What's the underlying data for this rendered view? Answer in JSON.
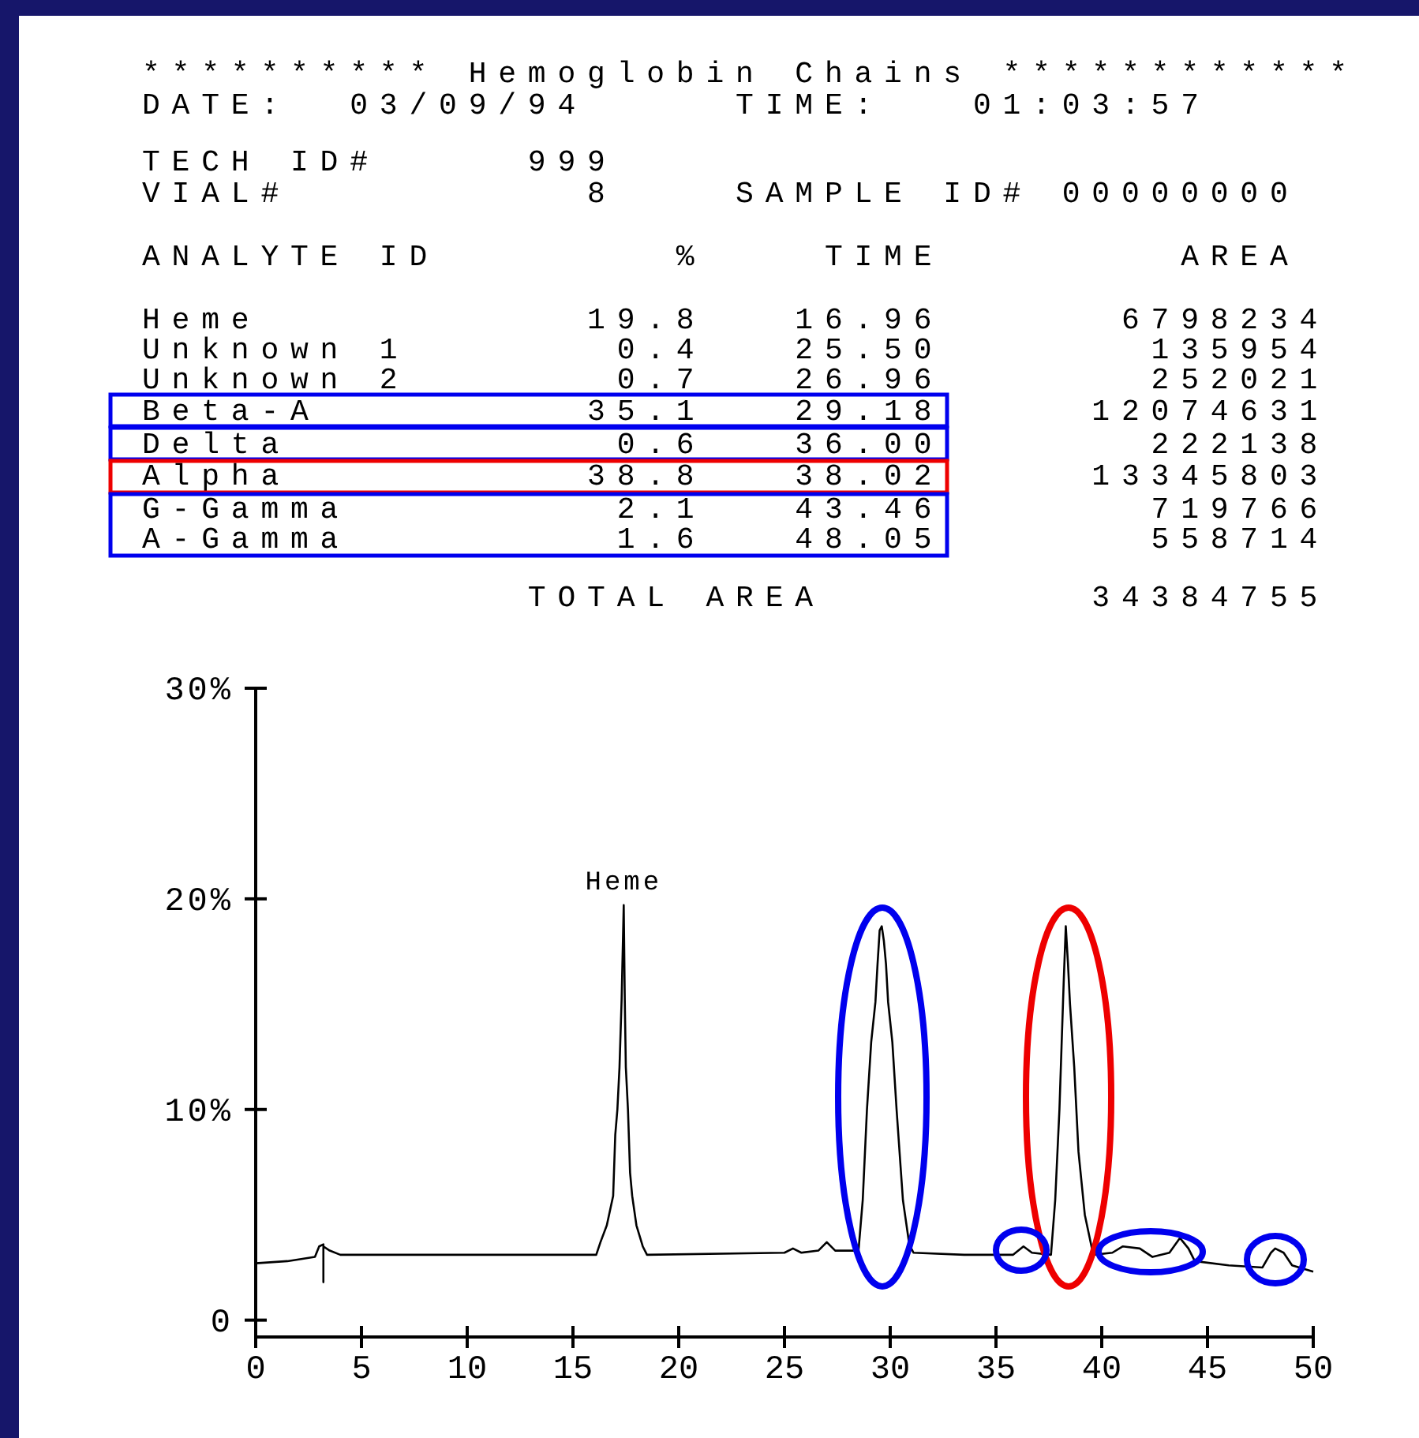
{
  "chart_data": {
    "type": "line",
    "title": "********** Hemoglobin Chains ************",
    "annotations": [
      "DATE:  03/09/94     TIME:   01:03:57",
      "TECH ID#     999",
      "VIAL#          8    SAMPLE ID# 00000000",
      "ANALYTE ID        %    TIME        AREA",
      "Heme           19.8   16.96      6798234",
      "Unknown 1       0.4   25.50       135954",
      "Unknown 2       0.7   26.96       252021",
      "Beta-A         35.1   29.18     12074631",
      "Delta           0.6   36.00       222138",
      "Alpha          38.8   38.02     13345803",
      "G-Gamma         2.1   43.46       719766",
      "A-Gamma         1.6   48.05       558714",
      "             TOTAL AREA         34384755",
      {
        "text": "Heme",
        "x": 17.4,
        "y": 19.7
      }
    ],
    "x": [
      0,
      1.5,
      2.8,
      3.0,
      3.2,
      3.2,
      3.2,
      3.5,
      4.0,
      10,
      16.1,
      16.3,
      16.6,
      16.9,
      17.0,
      17.1,
      17.2,
      17.3,
      17.4,
      17.45,
      17.5,
      17.6,
      17.7,
      17.8,
      18.0,
      18.3,
      18.5,
      25.0,
      25.4,
      25.8,
      26.6,
      27.0,
      27.4,
      28.5,
      28.7,
      28.9,
      29.1,
      29.3,
      29.4,
      29.5,
      29.6,
      29.7,
      29.8,
      29.9,
      30.1,
      30.3,
      30.6,
      30.9,
      31.1,
      33.5,
      35.8,
      36.3,
      36.7,
      37.6,
      37.8,
      38.0,
      38.1,
      38.2,
      38.3,
      38.4,
      38.5,
      38.7,
      38.9,
      39.2,
      39.6,
      40.5,
      41.0,
      41.8,
      42.4,
      43.2,
      43.7,
      44.1,
      44.4,
      46,
      47.6,
      48.0,
      48.2,
      48.6,
      49.0,
      50
    ],
    "values": [
      2.7,
      2.8,
      3.0,
      3.5,
      3.6,
      1.8,
      3.5,
      3.3,
      3.1,
      3.1,
      3.1,
      3.7,
      4.5,
      5.9,
      8.8,
      10,
      12,
      15.2,
      19.7,
      15.2,
      12,
      10,
      7,
      5.9,
      4.5,
      3.5,
      3.1,
      3.2,
      3.4,
      3.2,
      3.3,
      3.7,
      3.3,
      3.3,
      5.7,
      10,
      13.2,
      15.1,
      16.9,
      18.5,
      18.7,
      18.0,
      16.9,
      15.1,
      13.2,
      10,
      5.7,
      3.6,
      3.2,
      3.1,
      3.1,
      3.5,
      3.2,
      3.1,
      5.7,
      10,
      13,
      16,
      18.7,
      17,
      15,
      12,
      8,
      5,
      3.1,
      3.2,
      3.5,
      3.4,
      3.0,
      3.2,
      3.9,
      3.4,
      2.8,
      2.6,
      2.5,
      3.2,
      3.4,
      3.2,
      2.6,
      2.3
    ],
    "color": "#000000",
    "xlim": [
      0,
      50
    ],
    "xticks": [
      0,
      5,
      10,
      15,
      20,
      25,
      30,
      35,
      40,
      45,
      50
    ],
    "ylim": [
      -0.8,
      30
    ],
    "yticks": [
      0,
      {
        "value": 10,
        "label": "10%"
      },
      {
        "value": 20,
        "label": "20%"
      },
      {
        "value": 30,
        "label": "30%"
      }
    ]
  }
}
